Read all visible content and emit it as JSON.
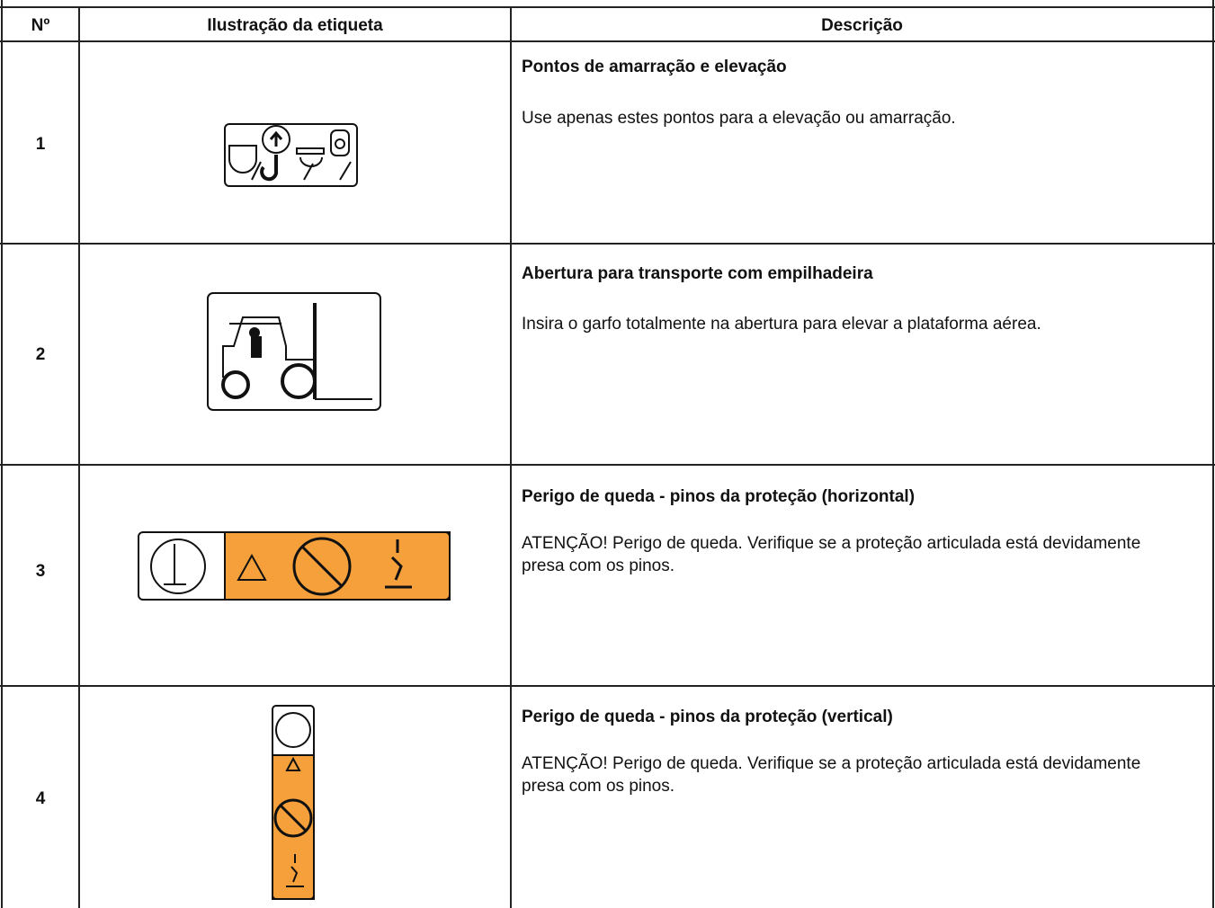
{
  "table": {
    "header": [
      "Nº",
      "Ilustração da etiqueta",
      "Descrição"
    ],
    "rows": [
      {
        "number": "1",
        "title": "Pontos de amarração e elevação",
        "description": "Use apenas estes pontos para a elevação ou amarração."
      },
      {
        "number": "2",
        "title": "Abertura para transporte com empilhadeira",
        "description": "Insira o garfo totalmente na abertura para elevar a plataforma aérea."
      },
      {
        "number": "3",
        "title": "Perigo de queda - pinos da proteção (horizontal)",
        "description": "ATENÇÃO! Perigo de queda. Verifique se a proteção articulada está devidamente presa com os pinos."
      },
      {
        "number": "4",
        "title": "Perigo de queda - pinos da proteção (vertical)",
        "description": "ATENÇÃO! Perigo de queda. Verifique se a proteção articulada está devidamente presa com os pinos."
      }
    ]
  }
}
